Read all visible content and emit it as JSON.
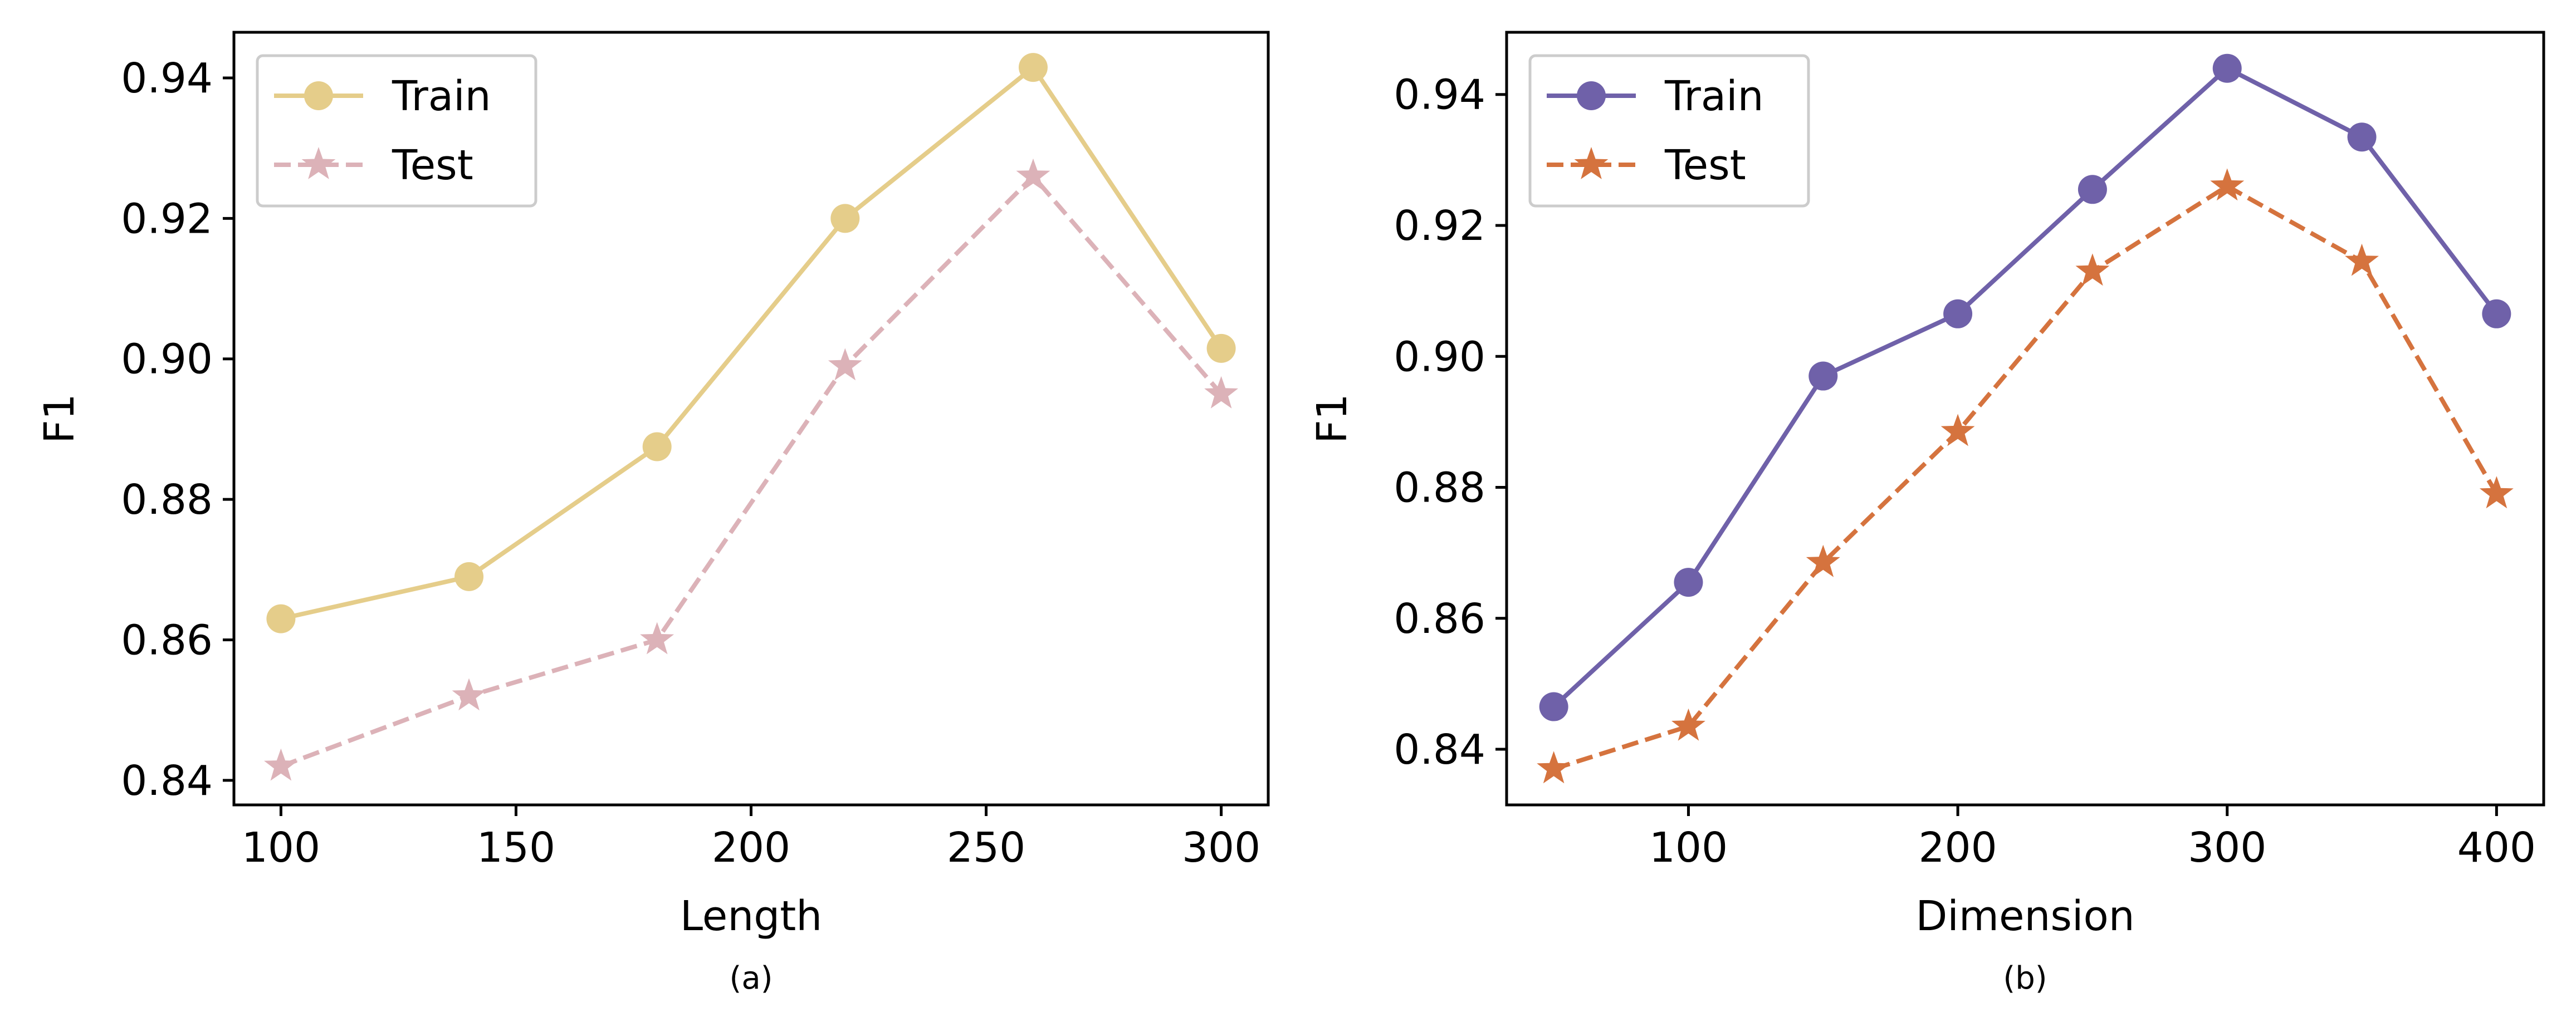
{
  "chart_data": [
    {
      "type": "line",
      "caption": "(a)",
      "xlabel": "Length",
      "ylabel": "F1",
      "xlim": [
        90,
        310
      ],
      "ylim": [
        0.8365,
        0.9465
      ],
      "xticks": [
        100,
        150,
        200,
        250,
        300
      ],
      "yticks": [
        0.84,
        0.86,
        0.88,
        0.9,
        0.92,
        0.94
      ],
      "xtick_labels": [
        "100",
        "150",
        "200",
        "250",
        "300"
      ],
      "ytick_labels": [
        "0.84",
        "0.86",
        "0.88",
        "0.90",
        "0.92",
        "0.94"
      ],
      "legend_position": "upper-left",
      "x": [
        100,
        140,
        180,
        220,
        260,
        300
      ],
      "series": [
        {
          "name": "Train",
          "marker": "circle",
          "line": "solid",
          "color": "#e5cd8a",
          "values": [
            0.863,
            0.869,
            0.8875,
            0.92,
            0.9415,
            0.9015
          ]
        },
        {
          "name": "Test",
          "marker": "star",
          "line": "dashed",
          "color": "#dcb2b8",
          "values": [
            0.842,
            0.852,
            0.86,
            0.899,
            0.926,
            0.895
          ]
        }
      ]
    },
    {
      "type": "line",
      "caption": "(b)",
      "xlabel": "Dimension",
      "ylabel": "F1",
      "xlim": [
        32.5,
        417.5
      ],
      "ylim": [
        0.8315,
        0.9495
      ],
      "xticks": [
        100,
        200,
        300,
        400
      ],
      "yticks": [
        0.84,
        0.86,
        0.88,
        0.9,
        0.92,
        0.94
      ],
      "xtick_labels": [
        "100",
        "200",
        "300",
        "400"
      ],
      "ytick_labels": [
        "0.84",
        "0.86",
        "0.88",
        "0.90",
        "0.92",
        "0.94"
      ],
      "legend_position": "upper-left",
      "x": [
        50,
        100,
        150,
        200,
        250,
        300,
        350,
        400
      ],
      "series": [
        {
          "name": "Train",
          "marker": "circle",
          "line": "solid",
          "color": "#6f61a9",
          "values": [
            0.8465,
            0.8655,
            0.897,
            0.9065,
            0.9255,
            0.944,
            0.9335,
            0.9065
          ]
        },
        {
          "name": "Test",
          "marker": "star",
          "line": "dashed",
          "color": "#d5733e",
          "values": [
            0.837,
            0.8435,
            0.8685,
            0.8885,
            0.913,
            0.926,
            0.9145,
            0.879
          ]
        }
      ]
    }
  ]
}
